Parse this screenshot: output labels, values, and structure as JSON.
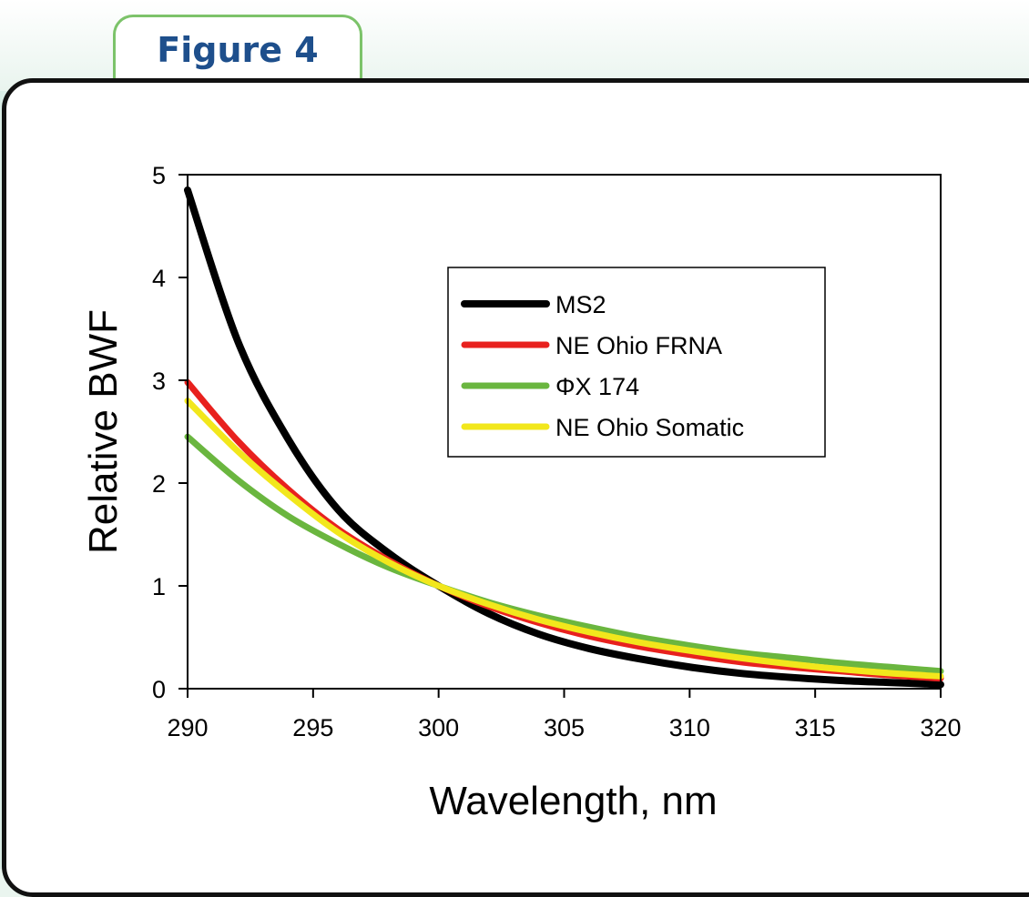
{
  "figure_tab": {
    "label": "Figure 4"
  },
  "chart_data": {
    "type": "line",
    "title": "",
    "xlabel": "Wavelength, nm",
    "ylabel": "Relative BWF",
    "xlim": [
      290,
      320
    ],
    "ylim": [
      0,
      5
    ],
    "xticks": [
      290,
      295,
      300,
      305,
      310,
      315,
      320
    ],
    "yticks": [
      0,
      1,
      2,
      3,
      4,
      5
    ],
    "legend_position": "top-right inside plot",
    "grid": false,
    "x": [
      290,
      292,
      294,
      296,
      298,
      300,
      302,
      304,
      306,
      308,
      310,
      312,
      314,
      316,
      318,
      320
    ],
    "series": [
      {
        "name": "MS2",
        "color": "#000000",
        "values": [
          4.85,
          3.38,
          2.43,
          1.74,
          1.32,
          1.0,
          0.73,
          0.53,
          0.39,
          0.29,
          0.21,
          0.15,
          0.11,
          0.08,
          0.06,
          0.04
        ]
      },
      {
        "name": "NE Ohio FRNA",
        "color": "#e8211e",
        "values": [
          2.98,
          2.41,
          1.94,
          1.55,
          1.25,
          1.0,
          0.8,
          0.64,
          0.51,
          0.41,
          0.33,
          0.26,
          0.21,
          0.17,
          0.13,
          0.1
        ]
      },
      {
        "name": "ΦX 174",
        "color": "#6ab63f",
        "values": [
          2.45,
          2.03,
          1.68,
          1.41,
          1.18,
          1.0,
          0.84,
          0.71,
          0.6,
          0.5,
          0.42,
          0.35,
          0.3,
          0.25,
          0.21,
          0.17
        ]
      },
      {
        "name": "NE Ohio Somatic",
        "color": "#f2e71c",
        "values": [
          2.8,
          2.31,
          1.89,
          1.52,
          1.23,
          1.0,
          0.82,
          0.67,
          0.55,
          0.45,
          0.37,
          0.3,
          0.24,
          0.19,
          0.15,
          0.12
        ]
      }
    ]
  }
}
